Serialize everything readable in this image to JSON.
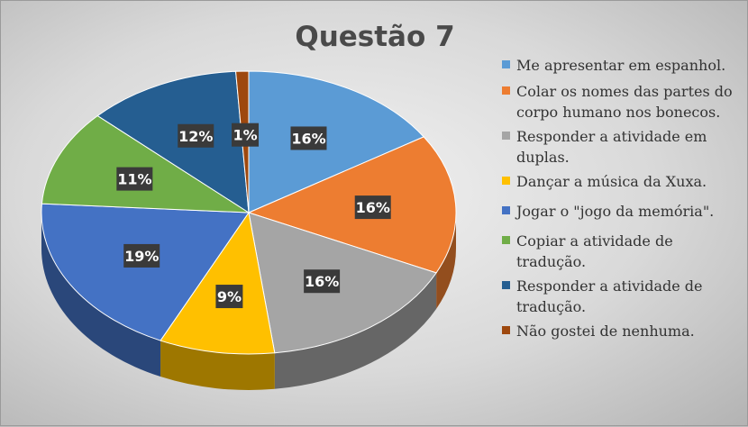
{
  "chart_data": {
    "type": "pie",
    "title": "Questão 7",
    "legend_position": "right",
    "categories": [
      "Me apresentar em espanhol.",
      "Colar os nomes das partes do corpo humano nos bonecos.",
      "Responder a atividade em duplas.",
      "Dançar a música da Xuxa.",
      "Jogar o \"jogo da memória\".",
      "Copiar a atividade de tradução.",
      "Responder a atividade de tradução.",
      "Não gostei de nenhuma."
    ],
    "values": [
      16,
      16,
      16,
      9,
      19,
      11,
      12,
      1
    ],
    "labels": [
      "16%",
      "16%",
      "16%",
      "9%",
      "19%",
      "11%",
      "12%",
      "1%"
    ],
    "colors": [
      "#5b9bd5",
      "#ed7d31",
      "#a5a5a5",
      "#ffc000",
      "#4472c4",
      "#70ad47",
      "#255e91",
      "#9e480e"
    ],
    "style": "3d"
  }
}
